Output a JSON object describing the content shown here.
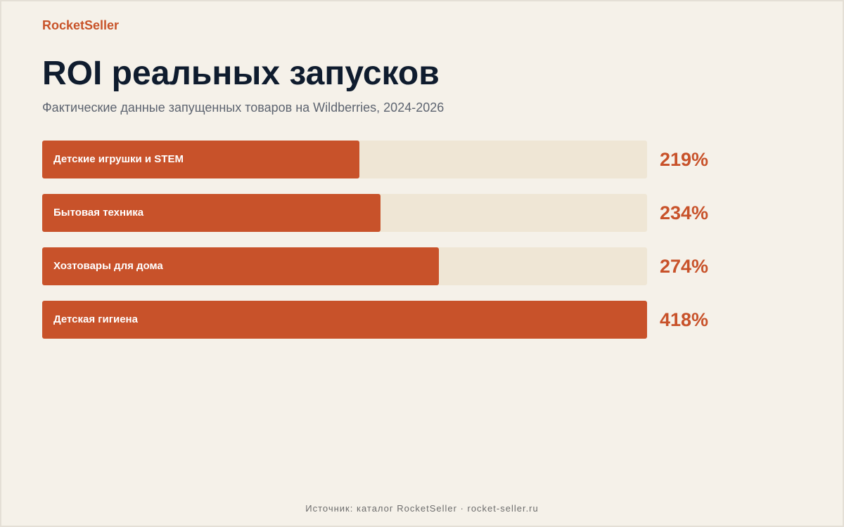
{
  "brand": "RocketSeller",
  "title": "ROI реальных запусков",
  "subtitle": "Фактические данные запущенных товаров на Wildberries, 2024-2026",
  "footer": "Источник: каталог RocketSeller · rocket-seller.ru",
  "colors": {
    "accent": "#c8522a",
    "track": "#efe6d5",
    "title": "#0f1c2e",
    "background": "#f5f1e9"
  },
  "chart_data": {
    "type": "bar",
    "orientation": "horizontal",
    "categories": [
      "Детские игрушки и STEM",
      "Бытовая техника",
      "Хозтовары для дома",
      "Детская гигиена"
    ],
    "values": [
      219,
      234,
      274,
      418
    ],
    "value_labels": [
      "219%",
      "234%",
      "274%",
      "418%"
    ],
    "unit": "%",
    "xlim": [
      0,
      418
    ]
  }
}
